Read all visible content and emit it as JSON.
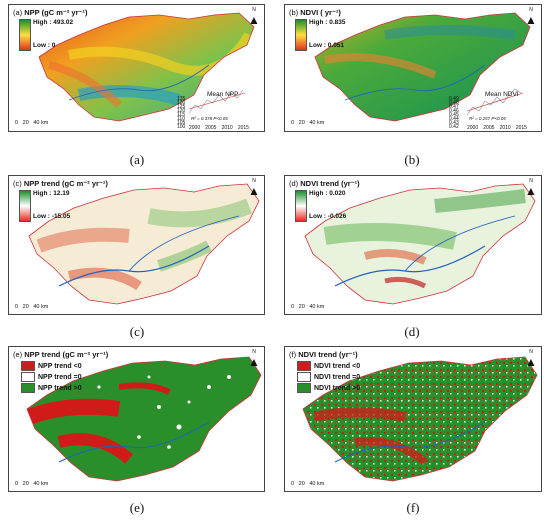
{
  "panels": [
    {
      "id": "a",
      "tag": "(a)",
      "title": "NPP (gC m⁻² yr⁻¹)",
      "high": "High : 493.02",
      "low": "Low : 0",
      "caption": "(a)",
      "inset": {
        "title": "Mean NPP",
        "stat": "R² = 0.378  P<0.05",
        "y_ticks": [
          "135",
          "130",
          "125",
          "120",
          "115",
          "110",
          "105",
          "100"
        ],
        "x_ticks": [
          "2000",
          "2005",
          "2010",
          "2015"
        ]
      }
    },
    {
      "id": "b",
      "tag": "(b)",
      "title": "NDVI ( yr⁻¹)",
      "high": "High : 0.835",
      "low": "Low : 0.051",
      "caption": "(b)",
      "inset": {
        "title": "Mean NDVI",
        "stat": "R² = 0.257  P<0.05",
        "y_ticks": [
          "0.49",
          "0.48",
          "0.47",
          "0.46",
          "0.45",
          "0.44",
          "0.43",
          "0.42"
        ],
        "x_ticks": [
          "2000",
          "2005",
          "2010",
          "2015"
        ]
      }
    },
    {
      "id": "c",
      "tag": "(c)",
      "title": "NPP trend (gC m⁻² yr⁻¹)",
      "high": "High : 12.19",
      "low": "Low : -15.05",
      "caption": "(c)"
    },
    {
      "id": "d",
      "tag": "(d)",
      "title": "NDVI trend (yr⁻¹)",
      "high": "High : 0.020",
      "low": "Low : -0.026",
      "caption": "(d)"
    },
    {
      "id": "e",
      "tag": "(e)",
      "title": "NPP trend (gC m⁻² yr⁻¹)",
      "classes": [
        "NPP trend <0",
        "NPP trend =0",
        "NPP trend >0"
      ],
      "caption": "(e)"
    },
    {
      "id": "f",
      "tag": "(f)",
      "title": "NDVI trend (yr⁻¹)",
      "classes": [
        "NDVI trend <0",
        "NDVI trend =0",
        "NDVI trend >0"
      ],
      "caption": "(f)"
    }
  ],
  "scale": {
    "labels": [
      "0",
      "20",
      "40 km"
    ]
  },
  "north_label": "N",
  "colors": {
    "green_dark": "#1a8f2a",
    "trend_neg": "#d11a1a",
    "trend_pos": "#2a8f2a",
    "river": "#2060c0",
    "boundary": "#d0303a"
  }
}
